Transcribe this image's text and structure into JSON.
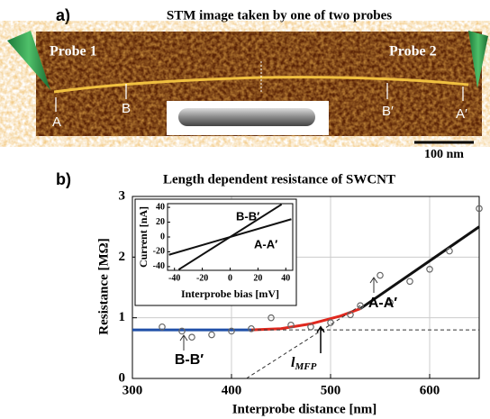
{
  "panel_a": {
    "label": "a)",
    "title": "STM image taken by one of two probes",
    "probe_labels": [
      "Probe 1",
      "Probe 2"
    ],
    "point_labels": [
      "A",
      "B",
      "B′",
      "A′"
    ],
    "scale_bar": "100 nm"
  },
  "chart_data": {
    "type": "scatter",
    "label": "b)",
    "title": "Length dependent resistance of SWCNT",
    "x_label": "Interprobe distance [nm]",
    "y_label": "Resistance [MΩ]",
    "x": [
      330,
      350,
      360,
      380,
      400,
      420,
      440,
      460,
      480,
      500,
      520,
      530,
      550,
      560,
      580,
      600,
      620,
      650
    ],
    "values": [
      0.85,
      0.78,
      0.68,
      0.72,
      0.78,
      0.82,
      1.0,
      0.88,
      0.85,
      0.92,
      1.05,
      1.2,
      1.7,
      1.25,
      1.6,
      1.8,
      2.1,
      2.8
    ],
    "color": "#666666",
    "xlim": [
      300,
      650
    ],
    "ylim": [
      0,
      3
    ],
    "xticks": [
      300,
      400,
      500,
      600
    ],
    "yticks": [
      0,
      1,
      2,
      3
    ],
    "grid": true,
    "lines": [
      {
        "color": "#1f4fa8",
        "dashed": false,
        "x": [
          300,
          420
        ],
        "values": [
          0.8,
          0.8
        ]
      },
      {
        "color": "#e0281e",
        "dashed": false,
        "x": [
          420,
          450,
          480,
          510,
          530
        ],
        "values": [
          0.8,
          0.82,
          0.9,
          1.03,
          1.15
        ]
      },
      {
        "color": "#111111",
        "dashed": false,
        "x": [
          530,
          650
        ],
        "values": [
          1.15,
          2.5
        ]
      },
      {
        "color": "#333333",
        "dashed": true,
        "x": [
          420,
          650
        ],
        "values": [
          0.8,
          0.8
        ]
      },
      {
        "color": "#333333",
        "dashed": true,
        "x": [
          415,
          530
        ],
        "values": [
          0,
          1.2
        ]
      }
    ],
    "annotations": [
      "B-B′",
      "A-A′"
    ],
    "mfp_label": {
      "main": "l",
      "sub": "MFP"
    },
    "inset": {
      "x_label": "Interprobe bias [mV]",
      "y_label": "Current [nA]",
      "xlim": [
        -45,
        45
      ],
      "ylim": [
        -45,
        45
      ],
      "xticks": [
        -40,
        -20,
        0,
        20,
        40
      ],
      "yticks": [
        -40,
        -20,
        0,
        20,
        40
      ],
      "lines": [
        {
          "name": "B-B′",
          "x": [
            -37,
            37
          ],
          "values": [
            -44,
            44
          ]
        },
        {
          "name": "A-A′",
          "x": [
            -44,
            44
          ],
          "values": [
            -24,
            24
          ]
        }
      ]
    }
  }
}
